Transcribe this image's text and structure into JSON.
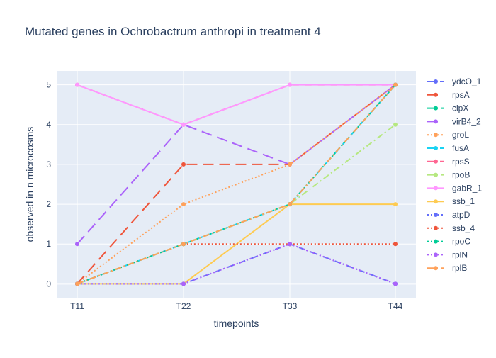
{
  "chart_data": {
    "type": "line",
    "title": "Mutated genes in Ochrobactrum anthropi in treatment 4",
    "xlabel": "timepoints",
    "ylabel": "observed in n microcosms",
    "categories": [
      "T11",
      "T22",
      "T33",
      "T44"
    ],
    "ylim": [
      -0.35,
      5.35
    ],
    "yticks": [
      0,
      1,
      2,
      3,
      4,
      5
    ],
    "grid": true,
    "legend_position": "right",
    "background_color": "#E5ECF6",
    "series": [
      {
        "name": "ydcO_1",
        "values": [
          0,
          0,
          1,
          0
        ],
        "color": "#636EFA",
        "dash": "dash"
      },
      {
        "name": "rpsA",
        "values": [
          0,
          3,
          3,
          5
        ],
        "color": "#EF553B",
        "dash": "longdash"
      },
      {
        "name": "clpX",
        "values": [
          0,
          1,
          2,
          5
        ],
        "color": "#00CC96",
        "dash": "dashdot"
      },
      {
        "name": "virB4_2",
        "values": [
          1,
          4,
          3,
          5
        ],
        "color": "#AB63FA",
        "dash": "longdash"
      },
      {
        "name": "groL",
        "values": [
          0,
          2,
          3,
          5
        ],
        "color": "#FFA15A",
        "dash": "dot"
      },
      {
        "name": "fusA",
        "values": [
          0,
          1,
          2,
          5
        ],
        "color": "#19D3F3",
        "dash": "dash"
      },
      {
        "name": "rpsS",
        "values": [
          5,
          4,
          5,
          5
        ],
        "color": "#FF6692",
        "dash": "dash"
      },
      {
        "name": "rpoB",
        "values": [
          0,
          1,
          2,
          4
        ],
        "color": "#B6E880",
        "dash": "dashdot"
      },
      {
        "name": "gabR_1",
        "values": [
          5,
          4,
          5,
          5
        ],
        "color": "#FF97FF",
        "dash": "solid"
      },
      {
        "name": "ssb_1",
        "values": [
          0,
          0,
          2,
          2
        ],
        "color": "#FECB52",
        "dash": "solid"
      },
      {
        "name": "atpD",
        "values": [
          0,
          0,
          1,
          0
        ],
        "color": "#636EFA",
        "dash": "dot"
      },
      {
        "name": "ssb_4",
        "values": [
          0,
          1,
          1,
          1
        ],
        "color": "#EF553B",
        "dash": "dot"
      },
      {
        "name": "rpoC",
        "values": [
          0,
          1,
          2,
          5
        ],
        "color": "#00CC96",
        "dash": "dot"
      },
      {
        "name": "rplN",
        "values": [
          0,
          0,
          1,
          0
        ],
        "color": "#AB63FA",
        "dash": "dot"
      },
      {
        "name": "rplB",
        "values": [
          0,
          1,
          2,
          5
        ],
        "color": "#FFA15A",
        "dash": "dashdot"
      }
    ]
  }
}
